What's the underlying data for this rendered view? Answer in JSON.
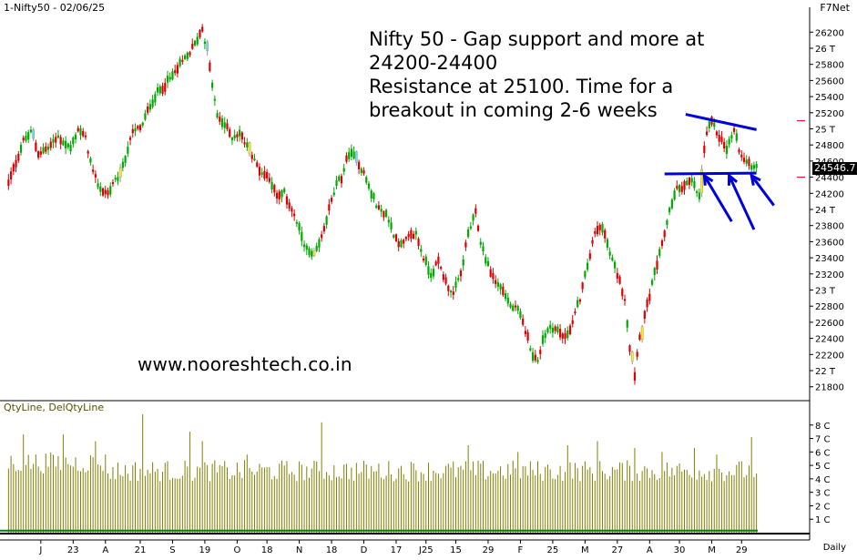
{
  "header": {
    "symbol_date": "1-Nifty50 - 02/06/25",
    "provider": "F7Net"
  },
  "annotation_text": "Nifty 50 - Gap support and more at\n24200-24400\nResistance at 25100. Time for a\nbreakout in coming 2-6 weeks",
  "watermark": "www.nooreshtech.co.in",
  "volume_legend": "QtyLine, DelQtyLine",
  "frequency_label": "Daily",
  "last_price_label": "24546.7",
  "colors": {
    "up": "#00aa00",
    "down": "#dd0000",
    "gap": "#ffee00",
    "gap_alt": "#66ddff",
    "trendline": "#0000dd",
    "volume": "#808000",
    "deliv": "#008000"
  },
  "chart_data": [
    {
      "type": "candlestick",
      "title": "",
      "ylim": [
        21650,
        26350
      ],
      "y_ticks": [
        {
          "value": 26200,
          "label": "26200"
        },
        {
          "value": 26000,
          "label": "26 T"
        },
        {
          "value": 25800,
          "label": "25800"
        },
        {
          "value": 25600,
          "label": "25600"
        },
        {
          "value": 25400,
          "label": "25400"
        },
        {
          "value": 25200,
          "label": "25200"
        },
        {
          "value": 25000,
          "label": "25 T"
        },
        {
          "value": 24800,
          "label": "24800"
        },
        {
          "value": 24600,
          "label": "24600"
        },
        {
          "value": 24400,
          "label": "24400"
        },
        {
          "value": 24200,
          "label": "24200"
        },
        {
          "value": 24000,
          "label": "24 T"
        },
        {
          "value": 23800,
          "label": "23800"
        },
        {
          "value": 23600,
          "label": "23600"
        },
        {
          "value": 23400,
          "label": "23400"
        },
        {
          "value": 23200,
          "label": "23200"
        },
        {
          "value": 23000,
          "label": "23 T"
        },
        {
          "value": 22800,
          "label": "22800"
        },
        {
          "value": 22600,
          "label": "22600"
        },
        {
          "value": 22400,
          "label": "22400"
        },
        {
          "value": 22200,
          "label": "22200"
        },
        {
          "value": 22000,
          "label": "22 T"
        },
        {
          "value": 21800,
          "label": "21800"
        }
      ],
      "x_ticks": [
        "J",
        "23",
        "A",
        "21",
        "S",
        "19",
        "O",
        "18",
        "N",
        "18",
        "D",
        "17",
        "J25",
        "15",
        "29",
        "F",
        "25",
        "M",
        "27",
        "A",
        "30",
        "M",
        "29"
      ],
      "path_points": [
        [
          0,
          24320
        ],
        [
          2,
          24500
        ],
        [
          6,
          24850
        ],
        [
          9,
          24950
        ],
        [
          12,
          24700
        ],
        [
          16,
          24760
        ],
        [
          20,
          24900
        ],
        [
          25,
          24760
        ],
        [
          28,
          25000
        ],
        [
          31,
          24880
        ],
        [
          34,
          24450
        ],
        [
          37,
          24250
        ],
        [
          40,
          24200
        ],
        [
          44,
          24400
        ],
        [
          47,
          24650
        ],
        [
          50,
          24950
        ],
        [
          54,
          25050
        ],
        [
          57,
          25300
        ],
        [
          60,
          25450
        ],
        [
          63,
          25550
        ],
        [
          66,
          25650
        ],
        [
          69,
          25790
        ],
        [
          72,
          25900
        ],
        [
          75,
          26050
        ],
        [
          78,
          26250
        ],
        [
          80,
          25950
        ],
        [
          82,
          25550
        ],
        [
          84,
          25150
        ],
        [
          87,
          25050
        ],
        [
          90,
          24900
        ],
        [
          93,
          24950
        ],
        [
          96,
          24780
        ],
        [
          99,
          24600
        ],
        [
          102,
          24450
        ],
        [
          105,
          24400
        ],
        [
          108,
          24150
        ],
        [
          111,
          24200
        ],
        [
          114,
          24000
        ],
        [
          117,
          23750
        ],
        [
          120,
          23500
        ],
        [
          123,
          23400
        ],
        [
          126,
          23650
        ],
        [
          129,
          24000
        ],
        [
          132,
          24300
        ],
        [
          134,
          24400
        ],
        [
          137,
          24700
        ],
        [
          140,
          24620
        ],
        [
          143,
          24450
        ],
        [
          146,
          24200
        ],
        [
          149,
          24000
        ],
        [
          152,
          23950
        ],
        [
          155,
          23700
        ],
        [
          158,
          23550
        ],
        [
          161,
          23650
        ],
        [
          164,
          23700
        ],
        [
          167,
          23400
        ],
        [
          170,
          23200
        ],
        [
          173,
          23350
        ],
        [
          176,
          23100
        ],
        [
          179,
          22950
        ],
        [
          182,
          23200
        ],
        [
          185,
          23700
        ],
        [
          188,
          23950
        ],
        [
          190,
          23600
        ],
        [
          193,
          23300
        ],
        [
          196,
          23100
        ],
        [
          199,
          23000
        ],
        [
          202,
          22800
        ],
        [
          205,
          22750
        ],
        [
          208,
          22500
        ],
        [
          211,
          22200
        ],
        [
          213,
          22100
        ],
        [
          215,
          22400
        ],
        [
          218,
          22550
        ],
        [
          221,
          22500
        ],
        [
          224,
          22400
        ],
        [
          227,
          22600
        ],
        [
          230,
          22900
        ],
        [
          233,
          23300
        ],
        [
          236,
          23700
        ],
        [
          239,
          23800
        ],
        [
          242,
          23450
        ],
        [
          245,
          23200
        ],
        [
          248,
          22900
        ],
        [
          250,
          22300
        ],
        [
          252,
          21950
        ],
        [
          254,
          22450
        ],
        [
          257,
          22800
        ],
        [
          260,
          23200
        ],
        [
          263,
          23550
        ],
        [
          266,
          24000
        ],
        [
          269,
          24250
        ],
        [
          272,
          24300
        ],
        [
          275,
          24350
        ],
        [
          278,
          24150
        ],
        [
          279,
          24500
        ],
        [
          281,
          24950
        ],
        [
          283,
          25080
        ],
        [
          286,
          24900
        ],
        [
          289,
          24750
        ],
        [
          292,
          24980
        ],
        [
          295,
          24650
        ],
        [
          298,
          24550
        ]
      ],
      "gap_candles": [
        10,
        45,
        80,
        97,
        123,
        140,
        251,
        255,
        279
      ],
      "trendlines": [
        {
          "name": "resistance",
          "points": [
            [
              272.5,
              25180
            ],
            [
              301,
              24990
            ]
          ]
        },
        {
          "name": "support",
          "points": [
            [
              264,
              24440
            ],
            [
              301,
              24450
            ]
          ]
        }
      ],
      "arrows": [
        {
          "from": [
            291,
            23850
          ],
          "to": [
            280,
            24420
          ]
        },
        {
          "from": [
            300,
            23750
          ],
          "to": [
            290,
            24420
          ]
        },
        {
          "from": [
            308,
            24050
          ],
          "to": [
            299,
            24420
          ]
        }
      ]
    },
    {
      "type": "bar",
      "title": "",
      "series": [
        {
          "name": "QtyLine",
          "baseline": 4.6,
          "spikes": [
            [
              6,
              7.3
            ],
            [
              22,
              7.3
            ],
            [
              35,
              6.8
            ],
            [
              54,
              8.8
            ],
            [
              73,
              7.5
            ],
            [
              78,
              6.8
            ],
            [
              96,
              5.8
            ],
            [
              126,
              8.2
            ],
            [
              185,
              6.5
            ],
            [
              205,
              6.0
            ],
            [
              225,
              6.5
            ],
            [
              237,
              6.8
            ],
            [
              252,
              6.3
            ],
            [
              263,
              6.0
            ],
            [
              276,
              6.3
            ],
            [
              285,
              5.8
            ],
            [
              299,
              7.1
            ]
          ]
        },
        {
          "name": "DelQtyLine",
          "baseline": 0.15
        }
      ],
      "ylim": [
        0,
        9
      ],
      "y_ticks": [
        {
          "value": 8,
          "label": "8 C"
        },
        {
          "value": 7,
          "label": "7 C"
        },
        {
          "value": 6,
          "label": "6 C"
        },
        {
          "value": 5,
          "label": "5 C"
        },
        {
          "value": 4,
          "label": "4 C"
        },
        {
          "value": 3,
          "label": "3 C"
        },
        {
          "value": 2,
          "label": "2 C"
        },
        {
          "value": 1,
          "label": "1 C"
        }
      ]
    }
  ]
}
